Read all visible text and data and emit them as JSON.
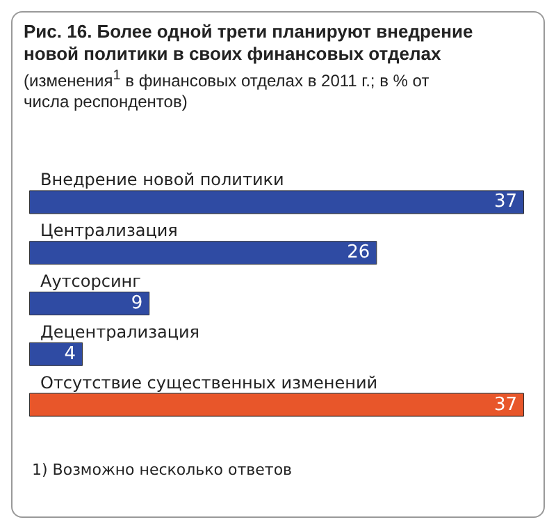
{
  "chart_data": {
    "type": "bar",
    "orientation": "horizontal",
    "title": "Рис. 16. Более одной трети планируют внедрение новой политики в своих финансовых отделах",
    "subtitle": "(изменения$^{1}$ в финансовых отделах в 2011 г.; в % от числа респондентов)",
    "categories": [
      "Внедрение новой политики",
      "Централизация",
      "Аутсорсинг",
      "Децентрализация",
      "Отсутствие существенных изменений"
    ],
    "values": [
      37,
      26,
      9,
      4,
      37
    ],
    "colors": [
      "#2f4ba3",
      "#2f4ba3",
      "#2f4ba3",
      "#2f4ba3",
      "#e8562a"
    ],
    "data_labels": true,
    "annotations": [
      "1) Возможно несколько ответов"
    ]
  }
}
